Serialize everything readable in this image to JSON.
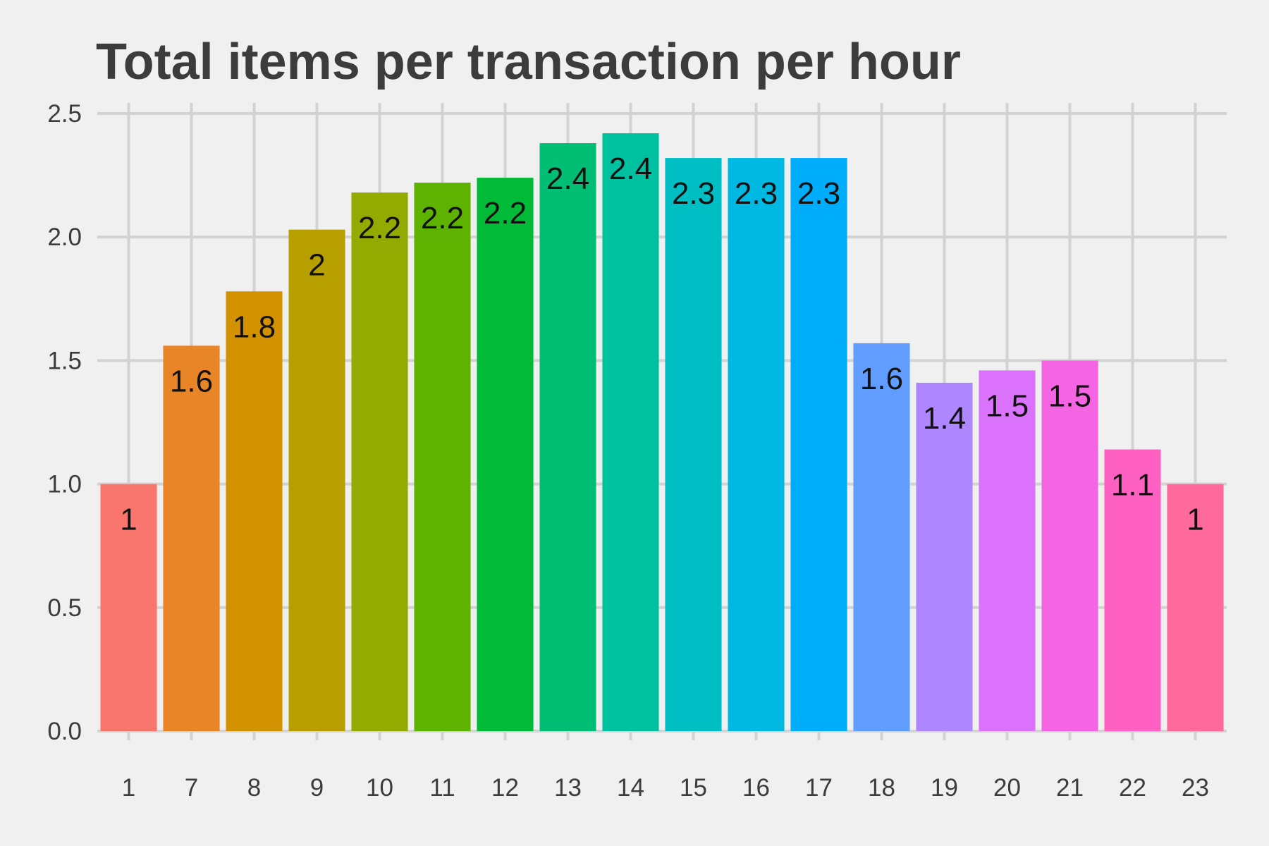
{
  "chart_data": {
    "type": "bar",
    "title": "Total items per transaction per hour",
    "xlabel": "",
    "ylabel": "",
    "categories": [
      "1",
      "7",
      "8",
      "9",
      "10",
      "11",
      "12",
      "13",
      "14",
      "15",
      "16",
      "17",
      "18",
      "19",
      "20",
      "21",
      "22",
      "23"
    ],
    "values": [
      1.0,
      1.56,
      1.78,
      2.03,
      2.18,
      2.22,
      2.24,
      2.38,
      2.42,
      2.32,
      2.32,
      2.32,
      1.57,
      1.41,
      1.46,
      1.5,
      1.14,
      1.0
    ],
    "data_labels": [
      "1",
      "1.6",
      "1.8",
      "2",
      "2.2",
      "2.2",
      "2.2",
      "2.4",
      "2.4",
      "2.3",
      "2.3",
      "2.3",
      "1.6",
      "1.4",
      "1.5",
      "1.5",
      "1.1",
      "1"
    ],
    "colors": [
      "#F8766D",
      "#E88526",
      "#D39200",
      "#B79F00",
      "#93AA00",
      "#5EB300",
      "#00BA38",
      "#00BF74",
      "#00C19F",
      "#00BFC4",
      "#00B9E3",
      "#00ADFA",
      "#619CFF",
      "#AE87FF",
      "#DB72FB",
      "#F564E3",
      "#FF61C3",
      "#FF699C"
    ],
    "ylim": [
      0,
      2.55
    ],
    "yticks": [
      0.0,
      0.5,
      1.0,
      1.5,
      2.0,
      2.5
    ],
    "ytick_labels": [
      "0.0",
      "0.5",
      "1.0",
      "1.5",
      "2.0",
      "2.5"
    ],
    "grid": true,
    "legend": "none"
  }
}
